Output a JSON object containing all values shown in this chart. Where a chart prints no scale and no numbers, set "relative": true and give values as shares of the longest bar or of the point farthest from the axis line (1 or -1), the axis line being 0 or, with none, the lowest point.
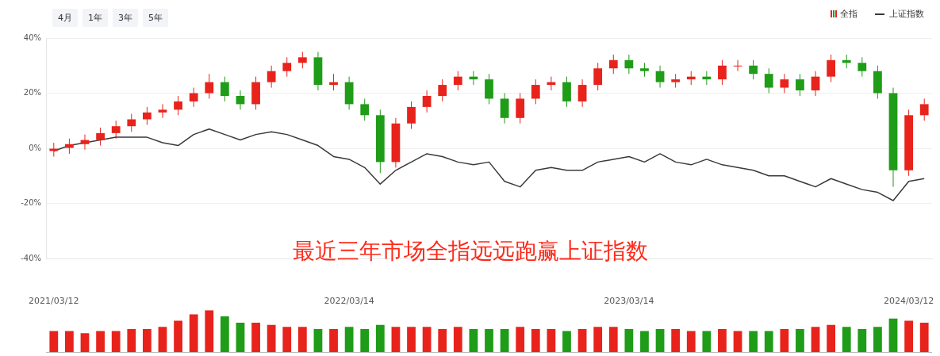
{
  "chart_data": [
    {
      "type": "other",
      "annotations": [
        "4月",
        "1年",
        "3年",
        "5年"
      ]
    },
    {
      "type": "candlestick",
      "categories": [
        null,
        null,
        null,
        null,
        null,
        null,
        null,
        null,
        null,
        null,
        null,
        null,
        null,
        null,
        null,
        null,
        null,
        null,
        null,
        null,
        null,
        null,
        null,
        null,
        null,
        null,
        null,
        null,
        null,
        null,
        null,
        null,
        null,
        null,
        null,
        null,
        null,
        null,
        null,
        null,
        null,
        null,
        null,
        null,
        null,
        null,
        null,
        null,
        null,
        null,
        null,
        null,
        null,
        null,
        null,
        null,
        null
      ],
      "series": [
        {
          "name": "全指",
          "type": "candlestick",
          "ohlc": [
            [
              -1,
              2,
              -3,
              0
            ],
            [
              0,
              3.5,
              -2,
              1.5
            ],
            [
              1.5,
              5,
              -0.5,
              3
            ],
            [
              3,
              7.5,
              1,
              5.5
            ],
            [
              5.5,
              10,
              3.5,
              8
            ],
            [
              8,
              12.5,
              6,
              10.5
            ],
            [
              10.5,
              15,
              8.5,
              13
            ],
            [
              13,
              16,
              11,
              14
            ],
            [
              14,
              19,
              12,
              17
            ],
            [
              17,
              22,
              15,
              20
            ],
            [
              20,
              27,
              18,
              24
            ],
            [
              24,
              26,
              17,
              19
            ],
            [
              19,
              21,
              14,
              16
            ],
            [
              16,
              26,
              14,
              24
            ],
            [
              24,
              30,
              22,
              28
            ],
            [
              28,
              33,
              26,
              31
            ],
            [
              31,
              35,
              29,
              33
            ],
            [
              33,
              35,
              21,
              23
            ],
            [
              23,
              27,
              21,
              24
            ],
            [
              24,
              26,
              14,
              16
            ],
            [
              16,
              18,
              10,
              12
            ],
            [
              12,
              14,
              -9,
              -5
            ],
            [
              -5,
              11,
              -7,
              9
            ],
            [
              9,
              17,
              7,
              15
            ],
            [
              15,
              21,
              13,
              19
            ],
            [
              19,
              25,
              17,
              23
            ],
            [
              23,
              28,
              21,
              26
            ],
            [
              26,
              28,
              23,
              25
            ],
            [
              25,
              27,
              16,
              18
            ],
            [
              18,
              20,
              9,
              11
            ],
            [
              11,
              20,
              9,
              18
            ],
            [
              18,
              25,
              16,
              23
            ],
            [
              23,
              26,
              21,
              24
            ],
            [
              24,
              26,
              15,
              17
            ],
            [
              17,
              25,
              15,
              23
            ],
            [
              23,
              31,
              21,
              29
            ],
            [
              29,
              34,
              27,
              32
            ],
            [
              32,
              34,
              27,
              29
            ],
            [
              29,
              31,
              26,
              28
            ],
            [
              28,
              30,
              22,
              24
            ],
            [
              24,
              27,
              22,
              25
            ],
            [
              25,
              28,
              23,
              26
            ],
            [
              26,
              28,
              23,
              25
            ],
            [
              25,
              32,
              23,
              30
            ],
            [
              30,
              32,
              28,
              30
            ],
            [
              30,
              32,
              25,
              27
            ],
            [
              27,
              29,
              20,
              22
            ],
            [
              22,
              27,
              20,
              25
            ],
            [
              25,
              27,
              19,
              21
            ],
            [
              21,
              28,
              19,
              26
            ],
            [
              26,
              34,
              24,
              32
            ],
            [
              32,
              34,
              29,
              31
            ],
            [
              31,
              33,
              26,
              28
            ],
            [
              28,
              30,
              18,
              20
            ],
            [
              20,
              22,
              -14,
              -8
            ],
            [
              -8,
              14,
              -10,
              12
            ],
            [
              12,
              18,
              10,
              16
            ]
          ],
          "colors": [
            "#e8231c",
            "#e8231c",
            "#e8231c",
            "#e8231c",
            "#e8231c",
            "#e8231c",
            "#e8231c",
            "#e8231c",
            "#e8231c",
            "#e8231c",
            "#e8231c",
            "#1f9c18",
            "#1f9c18",
            "#e8231c",
            "#e8231c",
            "#e8231c",
            "#e8231c",
            "#1f9c18",
            "#e8231c",
            "#1f9c18",
            "#1f9c18",
            "#1f9c18",
            "#e8231c",
            "#e8231c",
            "#e8231c",
            "#e8231c",
            "#e8231c",
            "#1f9c18",
            "#1f9c18",
            "#1f9c18",
            "#e8231c",
            "#e8231c",
            "#e8231c",
            "#1f9c18",
            "#e8231c",
            "#e8231c",
            "#e8231c",
            "#1f9c18",
            "#1f9c18",
            "#1f9c18",
            "#e8231c",
            "#e8231c",
            "#1f9c18",
            "#e8231c",
            "#e8231c",
            "#1f9c18",
            "#1f9c18",
            "#e8231c",
            "#1f9c18",
            "#e8231c",
            "#e8231c",
            "#1f9c18",
            "#1f9c18",
            "#1f9c18",
            "#1f9c18",
            "#e8231c",
            "#e8231c"
          ]
        },
        {
          "name": "上证指数",
          "type": "line",
          "color": "#3a3a3a",
          "values": [
            -1,
            1,
            2,
            3,
            4,
            4,
            4,
            2,
            1,
            5,
            7,
            5,
            3,
            5,
            6,
            5,
            3,
            1,
            -3,
            -4,
            -7,
            -13,
            -8,
            -5,
            -2,
            -3,
            -5,
            -6,
            -5,
            -12,
            -14,
            -8,
            -7,
            -8,
            -8,
            -5,
            -4,
            -3,
            -5,
            -2,
            -5,
            -6,
            -4,
            -6,
            -7,
            -8,
            -10,
            -10,
            -12,
            -14,
            -11,
            -13,
            -15,
            -16,
            -19,
            -12,
            -11
          ]
        }
      ],
      "ylim": [
        -40,
        40
      ],
      "yticks": [
        {
          "value": -40,
          "label": "-40%"
        },
        {
          "value": -20,
          "label": "-20%"
        },
        {
          "value": 0,
          "label": "0%"
        },
        {
          "value": 20,
          "label": "20%"
        },
        {
          "value": 40,
          "label": "40%"
        }
      ],
      "grid": "y",
      "legend": "top right",
      "tick_labels": "y",
      "marker": "none",
      "line_style": "solid",
      "annotations": [
        "最近三年市场全指远远跑赢上证指数"
      ]
    },
    {
      "type": "bar",
      "relative": true,
      "categories": [
        "2021/03/12",
        null,
        null,
        null,
        null,
        null,
        null,
        null,
        null,
        null,
        null,
        null,
        null,
        null,
        null,
        null,
        null,
        null,
        null,
        "2022/03/14",
        null,
        null,
        null,
        null,
        null,
        null,
        null,
        null,
        null,
        null,
        null,
        null,
        null,
        null,
        null,
        null,
        null,
        "2023/03/14",
        null,
        null,
        null,
        null,
        null,
        null,
        null,
        null,
        null,
        null,
        null,
        null,
        null,
        null,
        null,
        null,
        null,
        "2024/03/12",
        null
      ],
      "values": [
        0.5,
        0.5,
        0.45,
        0.5,
        0.5,
        0.55,
        0.55,
        0.6,
        0.75,
        0.9,
        1,
        0.85,
        0.7,
        0.7,
        0.65,
        0.6,
        0.6,
        0.55,
        0.55,
        0.6,
        0.55,
        0.65,
        0.6,
        0.6,
        0.6,
        0.55,
        0.6,
        0.55,
        0.55,
        0.55,
        0.6,
        0.55,
        0.55,
        0.5,
        0.55,
        0.6,
        0.6,
        0.55,
        0.5,
        0.55,
        0.55,
        0.5,
        0.5,
        0.55,
        0.5,
        0.5,
        0.5,
        0.55,
        0.55,
        0.6,
        0.65,
        0.6,
        0.55,
        0.6,
        0.8,
        0.75,
        0.7
      ],
      "colors": [
        "#e8231c",
        "#e8231c",
        "#e8231c",
        "#e8231c",
        "#e8231c",
        "#e8231c",
        "#e8231c",
        "#e8231c",
        "#e8231c",
        "#e8231c",
        "#e8231c",
        "#1f9c18",
        "#1f9c18",
        "#e8231c",
        "#e8231c",
        "#e8231c",
        "#e8231c",
        "#1f9c18",
        "#e8231c",
        "#1f9c18",
        "#1f9c18",
        "#1f9c18",
        "#e8231c",
        "#e8231c",
        "#e8231c",
        "#e8231c",
        "#e8231c",
        "#1f9c18",
        "#1f9c18",
        "#1f9c18",
        "#e8231c",
        "#e8231c",
        "#e8231c",
        "#1f9c18",
        "#e8231c",
        "#e8231c",
        "#e8231c",
        "#1f9c18",
        "#1f9c18",
        "#1f9c18",
        "#e8231c",
        "#e8231c",
        "#1f9c18",
        "#e8231c",
        "#e8231c",
        "#1f9c18",
        "#1f9c18",
        "#e8231c",
        "#1f9c18",
        "#e8231c",
        "#e8231c",
        "#1f9c18",
        "#1f9c18",
        "#1f9c18",
        "#1f9c18",
        "#e8231c",
        "#e8231c"
      ]
    }
  ]
}
